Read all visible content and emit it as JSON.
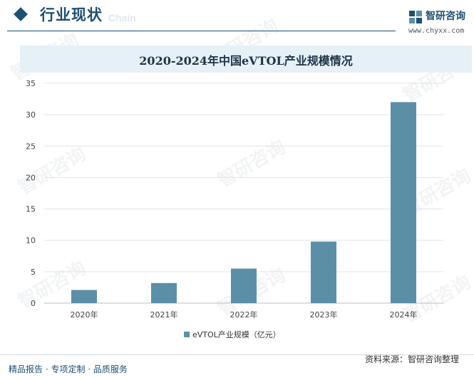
{
  "header": {
    "title": "行业现状",
    "ghost_text": "Chain"
  },
  "brand": {
    "name": "智研咨询",
    "url": "www.chyxx.com",
    "watermark_text": "智研咨询"
  },
  "colors": {
    "primary": "#1d4f73",
    "bar": "#5b8fa8",
    "title_band": "#e6f0f7"
  },
  "chart_data": {
    "type": "bar",
    "title": "2020-2024年中国eVTOL产业规模情况",
    "categories": [
      "2020年",
      "2021年",
      "2022年",
      "2023年",
      "2024年"
    ],
    "series": [
      {
        "name": "eVTOL产业规模（亿元）",
        "values": [
          2.1,
          3.2,
          5.5,
          9.8,
          32.0
        ]
      }
    ],
    "yticks": [
      0,
      5,
      10,
      15,
      20,
      25,
      30,
      35
    ],
    "ylim": [
      0,
      35
    ],
    "xlabel": "",
    "ylabel": "",
    "grid": true,
    "legend": "bottom-center"
  },
  "footer": {
    "tagline": "精品报告 · 专项定制 · 品质服务",
    "source": "资料来源：智研咨询整理"
  }
}
